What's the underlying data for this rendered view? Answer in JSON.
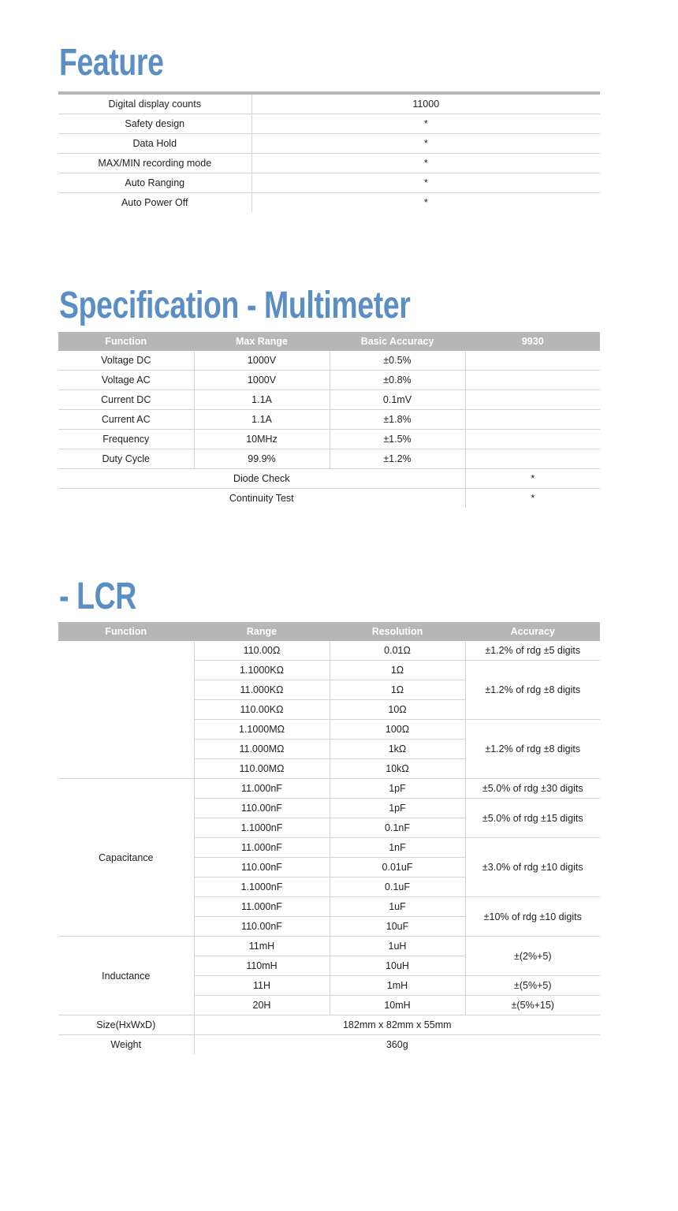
{
  "feature": {
    "title": "Feature",
    "rows": [
      [
        {
          "t": "Digital display counts"
        },
        {
          "t": "11000"
        }
      ],
      [
        {
          "t": "Safety design"
        },
        {
          "t": "*"
        }
      ],
      [
        {
          "t": "Data Hold"
        },
        {
          "t": "*"
        }
      ],
      [
        {
          "t": "MAX/MIN recording mode"
        },
        {
          "t": "*"
        }
      ],
      [
        {
          "t": "Auto Ranging"
        },
        {
          "t": "*"
        }
      ],
      [
        {
          "t": "Auto Power Off"
        },
        {
          "t": "*"
        }
      ]
    ]
  },
  "multimeter": {
    "title": "Specification - Multimeter",
    "headers": [
      "Function",
      "Max Range",
      "Basic Accuracy",
      "9930"
    ],
    "rows": [
      [
        {
          "t": "Voltage DC"
        },
        {
          "t": "1000V"
        },
        {
          "t": "±0.5%"
        },
        {
          "t": ""
        }
      ],
      [
        {
          "t": "Voltage AC"
        },
        {
          "t": "1000V"
        },
        {
          "t": "±0.8%"
        },
        {
          "t": ""
        }
      ],
      [
        {
          "t": "Current DC"
        },
        {
          "t": "1.1A"
        },
        {
          "t": "0.1mV"
        },
        {
          "t": ""
        }
      ],
      [
        {
          "t": "Current AC"
        },
        {
          "t": "1.1A"
        },
        {
          "t": "±1.8%"
        },
        {
          "t": ""
        }
      ],
      [
        {
          "t": "Frequency"
        },
        {
          "t": "10MHz"
        },
        {
          "t": "±1.5%"
        },
        {
          "t": ""
        }
      ],
      [
        {
          "t": "Duty Cycle"
        },
        {
          "t": "99.9%"
        },
        {
          "t": "±1.2%"
        },
        {
          "t": ""
        }
      ],
      [
        {
          "t": "Diode Check",
          "cs": 3
        },
        {
          "t": "*"
        }
      ],
      [
        {
          "t": "Continuity Test",
          "cs": 3
        },
        {
          "t": "*"
        }
      ]
    ]
  },
  "lcr": {
    "title": "- LCR",
    "headers": [
      "Function",
      "Range",
      "Resolution",
      "Accuracy"
    ],
    "rows": [
      [
        {
          "t": "",
          "rs": 7
        },
        {
          "t": "110.00Ω"
        },
        {
          "t": "0.01Ω"
        },
        {
          "t": "±1.2% of rdg ±5 digits"
        }
      ],
      [
        {
          "t": "1.1000KΩ"
        },
        {
          "t": "1Ω"
        },
        {
          "t": "±1.2% of rdg ±8 digits",
          "rs": 3
        }
      ],
      [
        {
          "t": "11.000KΩ"
        },
        {
          "t": "1Ω"
        }
      ],
      [
        {
          "t": "110.00KΩ"
        },
        {
          "t": "10Ω"
        }
      ],
      [
        {
          "t": "1.1000MΩ"
        },
        {
          "t": "100Ω"
        },
        {
          "t": "±1.2% of rdg ±8 digits",
          "rs": 3
        }
      ],
      [
        {
          "t": "11.000MΩ"
        },
        {
          "t": "1kΩ"
        }
      ],
      [
        {
          "t": "110.00MΩ"
        },
        {
          "t": "10kΩ"
        }
      ],
      [
        {
          "t": "Capacitance",
          "rs": 8
        },
        {
          "t": "11.000nF"
        },
        {
          "t": "1pF"
        },
        {
          "t": "±5.0% of rdg ±30 digits"
        }
      ],
      [
        {
          "t": "110.00nF"
        },
        {
          "t": "1pF"
        },
        {
          "t": "±5.0% of rdg ±15 digits",
          "rs": 2
        }
      ],
      [
        {
          "t": "1.1000nF"
        },
        {
          "t": "0.1nF"
        }
      ],
      [
        {
          "t": "11.000nF"
        },
        {
          "t": "1nF"
        },
        {
          "t": "±3.0% of rdg ±10 digits",
          "rs": 3
        }
      ],
      [
        {
          "t": "110.00nF"
        },
        {
          "t": "0.01uF"
        }
      ],
      [
        {
          "t": "1.1000nF"
        },
        {
          "t": "0.1uF"
        }
      ],
      [
        {
          "t": "11.000nF"
        },
        {
          "t": "1uF"
        },
        {
          "t": "±10% of rdg ±10 digits",
          "rs": 2
        }
      ],
      [
        {
          "t": "110.00nF"
        },
        {
          "t": "10uF"
        }
      ],
      [
        {
          "t": "Inductance",
          "rs": 4
        },
        {
          "t": "11mH"
        },
        {
          "t": "1uH"
        },
        {
          "t": "±(2%+5)",
          "rs": 2
        }
      ],
      [
        {
          "t": "110mH"
        },
        {
          "t": "10uH"
        }
      ],
      [
        {
          "t": "11H"
        },
        {
          "t": "1mH"
        },
        {
          "t": "±(5%+5)"
        }
      ],
      [
        {
          "t": "20H"
        },
        {
          "t": "10mH"
        },
        {
          "t": "±(5%+15)"
        }
      ],
      [
        {
          "t": "Size(HxWxD)"
        },
        {
          "t": "182mm x 82mm x 55mm",
          "cs": 3
        }
      ],
      [
        {
          "t": "Weight"
        },
        {
          "t": "360g",
          "cs": 3
        }
      ]
    ]
  }
}
